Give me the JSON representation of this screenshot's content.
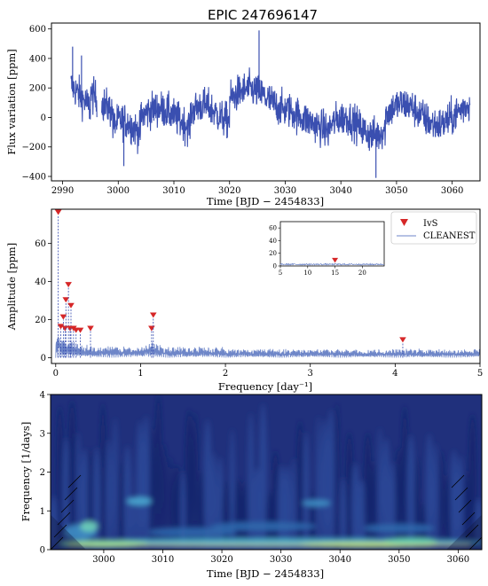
{
  "title": "EPIC 247696147",
  "chart_data": [
    {
      "type": "line",
      "xlabel": "Time [BJD − 2454833]",
      "ylabel": "Flux variation [ppm]",
      "xlim": [
        2988,
        3065
      ],
      "ylim": [
        -430,
        640
      ],
      "xticks": [
        2990,
        3000,
        3010,
        3020,
        3030,
        3040,
        3050,
        3060
      ],
      "yticks": [
        -400,
        -200,
        0,
        200,
        400,
        600
      ],
      "series_color": "#3a4fb0",
      "spikes": [
        {
          "x": 2991.8,
          "y": 480
        },
        {
          "x": 2993.4,
          "y": 420
        },
        {
          "x": 3025.3,
          "y": 590
        },
        {
          "x": 3046.3,
          "y": -410
        },
        {
          "x": 3001.0,
          "y": -330
        }
      ]
    },
    {
      "type": "line",
      "xlabel": "Frequency [day⁻¹]",
      "ylabel": "Amplitude [ppm]",
      "xlim": [
        -0.05,
        5
      ],
      "ylim": [
        -3,
        78
      ],
      "xticks": [
        0,
        1,
        2,
        3,
        4,
        5
      ],
      "yticks": [
        0,
        20,
        40,
        60
      ],
      "legend": [
        {
          "label": "IvS",
          "marker": "triangle-down",
          "color": "#d62728"
        },
        {
          "label": "CLEANEST",
          "marker": "line",
          "color": "#6e86c8"
        }
      ],
      "legend_placement": "top-right",
      "peaks": [
        {
          "x": 0.03,
          "y": 75
        },
        {
          "x": 0.06,
          "y": 15
        },
        {
          "x": 0.09,
          "y": 20
        },
        {
          "x": 0.11,
          "y": 14
        },
        {
          "x": 0.12,
          "y": 29
        },
        {
          "x": 0.15,
          "y": 37
        },
        {
          "x": 0.17,
          "y": 14
        },
        {
          "x": 0.18,
          "y": 26
        },
        {
          "x": 0.21,
          "y": 14
        },
        {
          "x": 0.24,
          "y": 13
        },
        {
          "x": 0.29,
          "y": 13
        },
        {
          "x": 0.41,
          "y": 14
        },
        {
          "x": 1.13,
          "y": 14
        },
        {
          "x": 1.15,
          "y": 21
        },
        {
          "x": 4.09,
          "y": 8
        }
      ],
      "inset": {
        "xlim": [
          5,
          24
        ],
        "ylim": [
          0,
          70
        ],
        "xticks": [
          5,
          10,
          15,
          20
        ],
        "yticks": [
          0,
          20,
          40,
          60
        ],
        "peaks": [
          {
            "x": 15.0,
            "y": 5
          }
        ]
      }
    },
    {
      "type": "heatmap",
      "xlabel": "Time [BJD − 2454833]",
      "ylabel": "Frequency [1/days]",
      "xlim": [
        2991,
        3064
      ],
      "ylim": [
        0,
        4
      ],
      "xticks": [
        3000,
        3010,
        3020,
        3030,
        3040,
        3050,
        3060
      ],
      "yticks": [
        0,
        1,
        2,
        3,
        4
      ]
    }
  ]
}
